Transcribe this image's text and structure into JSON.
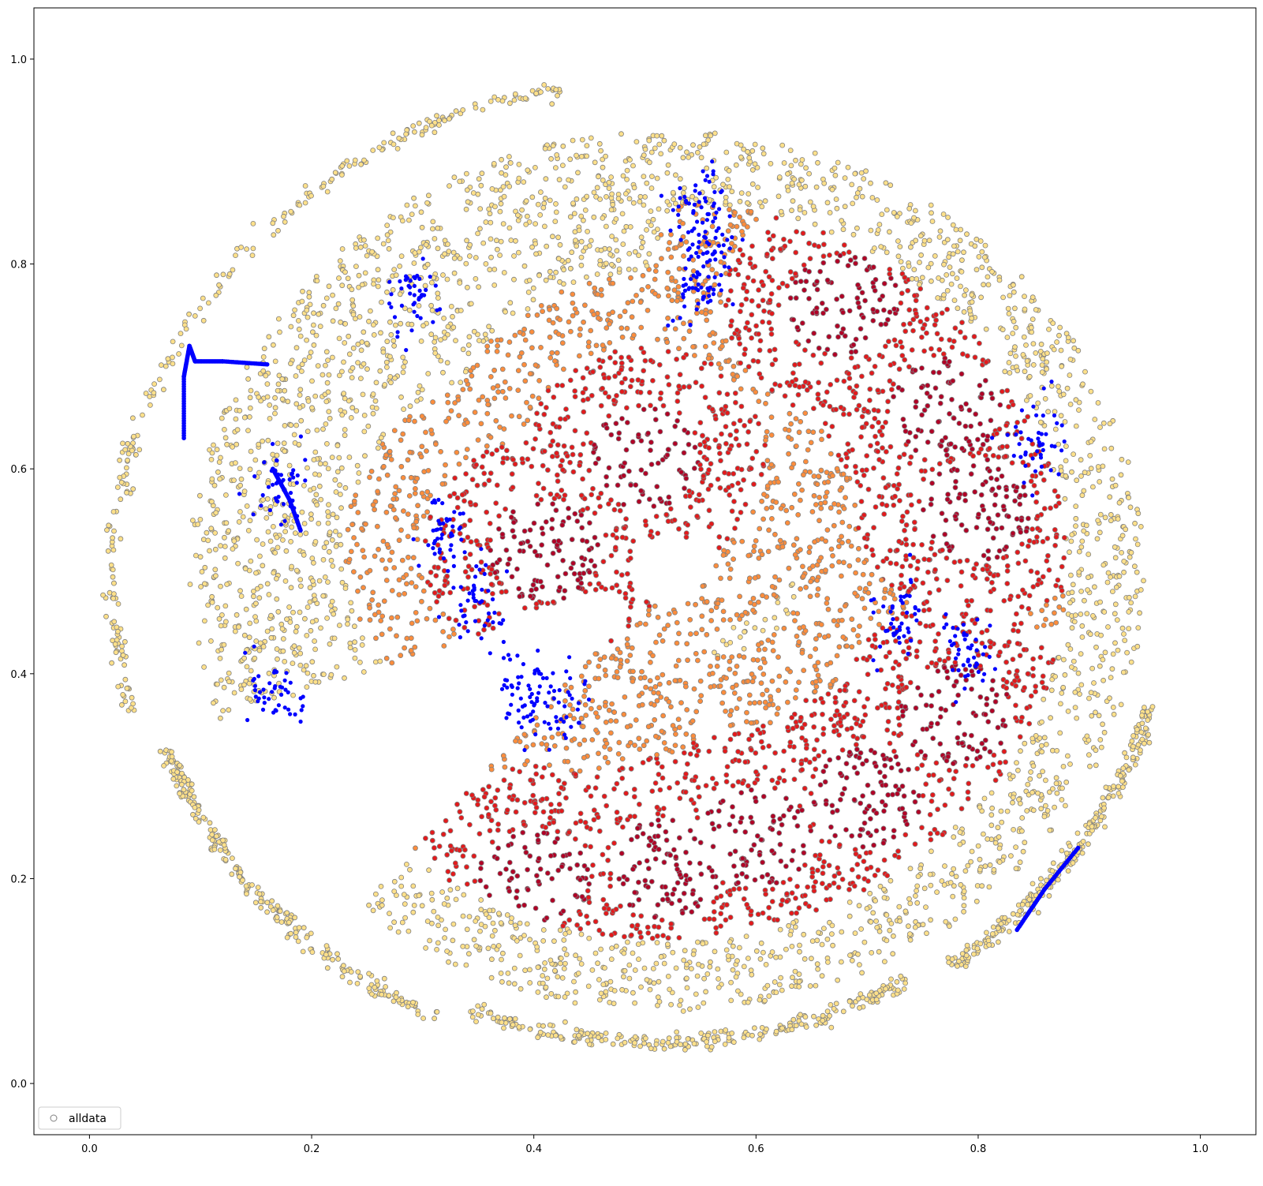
{
  "chart_data": {
    "type": "scatter",
    "title": "",
    "xlabel": "",
    "ylabel": "",
    "xlim": [
      -0.05,
      1.05
    ],
    "ylim": [
      -0.05,
      1.05
    ],
    "x_ticks": [
      "0.0",
      "0.2",
      "0.4",
      "0.6",
      "0.8",
      "1.0"
    ],
    "y_ticks": [
      "0.0",
      "0.2",
      "0.4",
      "0.6",
      "0.8",
      "1.0"
    ],
    "grid": false,
    "legend": {
      "placement": "lower-left",
      "entries": [
        "alldata"
      ]
    },
    "colors": {
      "background": "#ffffff",
      "marker_edge": "#808080",
      "light": "#fde08a",
      "mid": "#fd8d3c",
      "hot": "#e31a1c",
      "core": "#b10026",
      "highlight": "#0000ff"
    },
    "series": [
      {
        "name": "alldata",
        "marker": "open-circle",
        "description_shape": "disc with radial lobes",
        "center": [
          0.52,
          0.5
        ],
        "dense_cores": [
          [
            0.41,
            0.52
          ],
          [
            0.5,
            0.61
          ],
          [
            0.68,
            0.76
          ],
          [
            0.77,
            0.66
          ],
          [
            0.8,
            0.56
          ],
          [
            0.78,
            0.36
          ],
          [
            0.7,
            0.28
          ],
          [
            0.6,
            0.24
          ],
          [
            0.52,
            0.21
          ],
          [
            0.4,
            0.2
          ]
        ],
        "outer_arcs": [
          {
            "cx": 0.51,
            "cy": 0.49,
            "r": 0.49,
            "a0": 100,
            "a1": 195
          },
          {
            "cx": 0.51,
            "cy": 0.49,
            "r": 0.47,
            "a0": 200,
            "a1": 245
          },
          {
            "cx": 0.51,
            "cy": 0.49,
            "r": 0.45,
            "a0": 248,
            "a1": 300
          },
          {
            "cx": 0.51,
            "cy": 0.49,
            "r": 0.46,
            "a0": 305,
            "a1": 345
          }
        ]
      },
      {
        "name": "highlight",
        "marker": "blue-star",
        "clusters": [
          [
            0.56,
            0.82
          ],
          [
            0.55,
            0.86
          ],
          [
            0.32,
            0.54
          ],
          [
            0.35,
            0.47
          ],
          [
            0.39,
            0.38
          ],
          [
            0.42,
            0.37
          ],
          [
            0.29,
            0.77
          ],
          [
            0.73,
            0.45
          ],
          [
            0.79,
            0.42
          ],
          [
            0.85,
            0.63
          ],
          [
            0.17,
            0.58
          ],
          [
            0.17,
            0.38
          ],
          [
            0.55,
            0.78
          ]
        ],
        "curves": [
          [
            [
              0.085,
              0.63
            ],
            [
              0.085,
              0.69
            ],
            [
              0.09,
              0.72
            ],
            [
              0.095,
              0.705
            ],
            [
              0.12,
              0.705
            ],
            [
              0.16,
              0.702
            ]
          ],
          [
            [
              0.835,
              0.15
            ],
            [
              0.86,
              0.19
            ],
            [
              0.89,
              0.23
            ]
          ],
          [
            [
              0.165,
              0.6
            ],
            [
              0.18,
              0.57
            ],
            [
              0.19,
              0.54
            ]
          ]
        ]
      }
    ]
  }
}
